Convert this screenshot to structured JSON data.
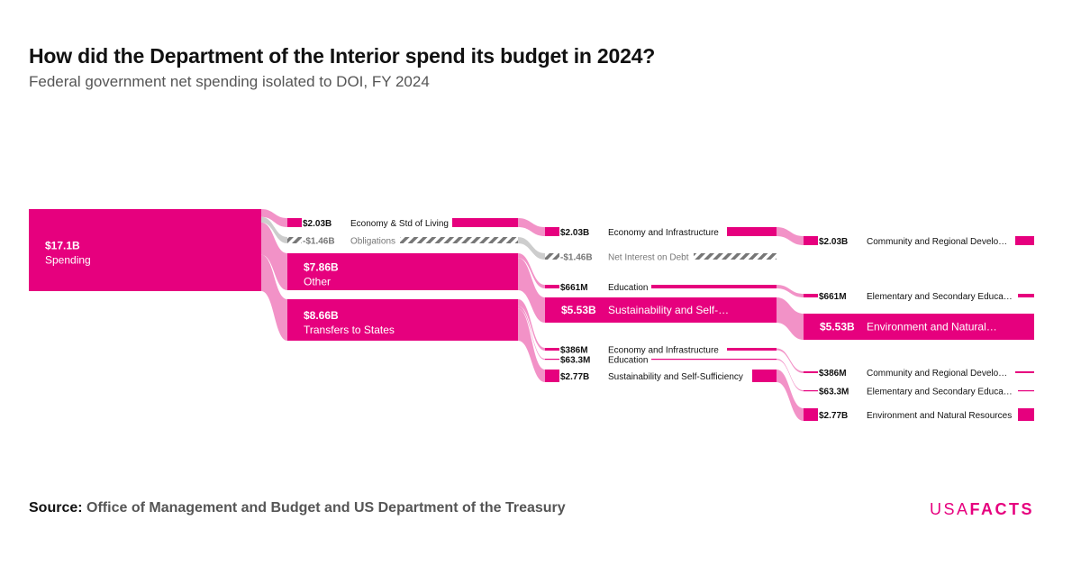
{
  "title": "How did the Department of the Interior spend its budget in 2024?",
  "subtitle": "Federal government net spending isolated to DOI, FY 2024",
  "source": {
    "label": "Source:",
    "text": "Office of Management and Budget and US Department of the Treasury"
  },
  "logo": {
    "light": "USA",
    "bold": "FACTS"
  },
  "colors": {
    "accent": "#e6007e",
    "link": "#f07fbd",
    "negative_link": "#c8c8c8",
    "hatch": "#777777"
  },
  "chart_data": {
    "type": "sankey",
    "unit": "USD",
    "nodes": [
      {
        "id": "spending",
        "value_label": "$17.1B",
        "label": "Spending",
        "value": 17.1
      },
      {
        "id": "c1_econ",
        "value_label": "$2.03B",
        "label": "Economy & Std of Living",
        "value": 2.03
      },
      {
        "id": "c1_oblig",
        "value_label": "-$1.46B",
        "label": "Obligations",
        "value": -1.46
      },
      {
        "id": "c1_other",
        "value_label": "$7.86B",
        "label": "Other",
        "value": 7.86
      },
      {
        "id": "c1_transfers",
        "value_label": "$8.66B",
        "label": "Transfers to States",
        "value": 8.66
      },
      {
        "id": "c2_econ_infra",
        "value_label": "$2.03B",
        "label": "Economy and Infrastructure",
        "value": 2.03
      },
      {
        "id": "c2_net_interest",
        "value_label": "-$1.46B",
        "label": "Net Interest on Debt",
        "value": -1.46
      },
      {
        "id": "c2_education",
        "value_label": "$661M",
        "label": "Education",
        "value": 0.661
      },
      {
        "id": "c2_sustain",
        "value_label": "$5.53B",
        "label": "Sustainability and Self-…",
        "value": 5.53
      },
      {
        "id": "c2_t_econ_infra",
        "value_label": "$386M",
        "label": "Economy and Infrastructure",
        "value": 0.386
      },
      {
        "id": "c2_t_education",
        "value_label": "$63.3M",
        "label": "Education",
        "value": 0.0633
      },
      {
        "id": "c2_t_sustain",
        "value_label": "$2.77B",
        "label": "Sustainability and Self-Sufficiency",
        "value": 2.77
      },
      {
        "id": "c3_community",
        "value_label": "$2.03B",
        "label": "Community and Regional Develo…",
        "value": 2.03
      },
      {
        "id": "c3_elem",
        "value_label": "$661M",
        "label": "Elementary and Secondary Educa…",
        "value": 0.661
      },
      {
        "id": "c3_env",
        "value_label": "$5.53B",
        "label": "Environment and Natural…",
        "value": 5.53
      },
      {
        "id": "c3_t_community",
        "value_label": "$386M",
        "label": "Community and Regional Develo…",
        "value": 0.386
      },
      {
        "id": "c3_t_elem",
        "value_label": "$63.3M",
        "label": "Elementary and Secondary Educa…",
        "value": 0.0633
      },
      {
        "id": "c3_t_env",
        "value_label": "$2.77B",
        "label": "Environment and Natural Resources",
        "value": 2.77
      }
    ],
    "links": [
      {
        "source": "spending",
        "target": "c1_econ",
        "value": 2.03
      },
      {
        "source": "spending",
        "target": "c1_oblig",
        "value": -1.46
      },
      {
        "source": "spending",
        "target": "c1_other",
        "value": 7.86
      },
      {
        "source": "spending",
        "target": "c1_transfers",
        "value": 8.66
      },
      {
        "source": "c1_econ",
        "target": "c2_econ_infra",
        "value": 2.03
      },
      {
        "source": "c1_oblig",
        "target": "c2_net_interest",
        "value": -1.46
      },
      {
        "source": "c1_other",
        "target": "c2_education",
        "value": 0.661
      },
      {
        "source": "c1_other",
        "target": "c2_sustain",
        "value": 5.53
      },
      {
        "source": "c1_transfers",
        "target": "c2_t_econ_infra",
        "value": 0.386
      },
      {
        "source": "c1_transfers",
        "target": "c2_t_education",
        "value": 0.0633
      },
      {
        "source": "c1_transfers",
        "target": "c2_t_sustain",
        "value": 2.77
      },
      {
        "source": "c2_econ_infra",
        "target": "c3_community",
        "value": 2.03
      },
      {
        "source": "c2_education",
        "target": "c3_elem",
        "value": 0.661
      },
      {
        "source": "c2_sustain",
        "target": "c3_env",
        "value": 5.53
      },
      {
        "source": "c2_t_econ_infra",
        "target": "c3_t_community",
        "value": 0.386
      },
      {
        "source": "c2_t_education",
        "target": "c3_t_elem",
        "value": 0.0633
      },
      {
        "source": "c2_t_sustain",
        "target": "c3_t_env",
        "value": 2.77
      }
    ]
  }
}
